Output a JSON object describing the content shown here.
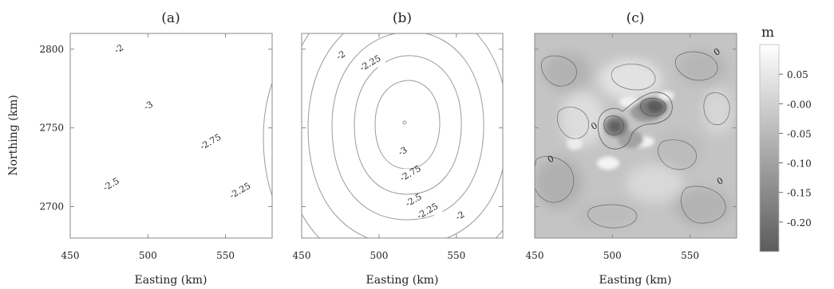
{
  "chart_data": [
    {
      "type": "contour",
      "title": "(a)",
      "xlabel": "Easting (km)",
      "ylabel": "Northing (km)",
      "xlim": [
        450,
        580
      ],
      "ylim": [
        2680,
        2810
      ],
      "x_ticks": [
        450,
        500,
        550
      ],
      "y_ticks": [
        2700,
        2750,
        2800
      ],
      "center": [
        515,
        2758
      ],
      "levels": [
        -3,
        -2.75,
        -2.5,
        -2.25,
        -2
      ],
      "labels": [
        {
          "text": "-2",
          "x": 482,
          "y": 2799
        },
        {
          "text": "-3",
          "x": 501,
          "y": 2763
        },
        {
          "text": "-2.75",
          "x": 541,
          "y": 2740
        },
        {
          "text": "-2.5",
          "x": 477,
          "y": 2713
        },
        {
          "text": "-2.25",
          "x": 560,
          "y": 2709
        }
      ]
    },
    {
      "type": "contour",
      "title": "(b)",
      "xlabel": "Easting (km)",
      "ylabel": "",
      "xlim": [
        450,
        580
      ],
      "ylim": [
        2680,
        2810
      ],
      "x_ticks": [
        450,
        500,
        550
      ],
      "y_ticks": [
        2700,
        2750,
        2800
      ],
      "center": [
        515,
        2753
      ],
      "levels": [
        -3,
        -2.75,
        -2.5,
        -2.25,
        -2
      ],
      "labels": [
        {
          "text": "-2",
          "x": 476,
          "y": 2795
        },
        {
          "text": "-2.25",
          "x": 495,
          "y": 2790
        },
        {
          "text": "-3",
          "x": 516,
          "y": 2734
        },
        {
          "text": "-2.75",
          "x": 521,
          "y": 2720
        },
        {
          "text": "-2.5",
          "x": 523,
          "y": 2703
        },
        {
          "text": "-2.25",
          "x": 532,
          "y": 2696
        },
        {
          "text": "-2",
          "x": 553,
          "y": 2693
        }
      ]
    },
    {
      "type": "heatmap",
      "title": "(c)",
      "xlabel": "Easting (km)",
      "ylabel": "",
      "xlim": [
        450,
        580
      ],
      "ylim": [
        2680,
        2810
      ],
      "x_ticks": [
        450,
        500,
        550
      ],
      "y_ticks": [
        2700,
        2750,
        2800
      ],
      "labels": [
        {
          "text": "0",
          "x": 568,
          "y": 2797
        },
        {
          "text": "0",
          "x": 489,
          "y": 2750
        },
        {
          "text": "0",
          "x": 461,
          "y": 2729
        },
        {
          "text": "0",
          "x": 570,
          "y": 2715
        }
      ],
      "colorbar": {
        "title": "m",
        "ticks": [
          "0.05",
          "-0.00",
          "-0.05",
          "-0.10",
          "-0.15",
          "-0.20"
        ],
        "tick_values": [
          0.05,
          0.0,
          -0.05,
          -0.1,
          -0.15,
          -0.2
        ],
        "range": [
          -0.25,
          0.1
        ],
        "colors": [
          "#5c5c5c",
          "#ffffff"
        ]
      }
    }
  ]
}
